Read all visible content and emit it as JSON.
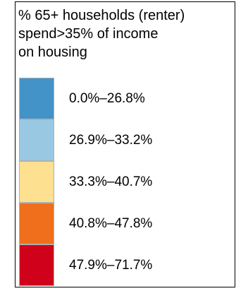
{
  "legend": {
    "title_lines": [
      "% 65+ households (renter)",
      "spend>35% of income",
      "on housing"
    ],
    "classes": [
      {
        "label": "0.0%–26.8%",
        "color": "#4393c9"
      },
      {
        "label": "26.9%–33.2%",
        "color": "#99c9e2"
      },
      {
        "label": "33.3%–40.7%",
        "color": "#fee091"
      },
      {
        "label": "40.8%–47.8%",
        "color": "#f06f1c"
      },
      {
        "label": "47.9%–71.7%",
        "color": "#d0021b"
      }
    ]
  }
}
